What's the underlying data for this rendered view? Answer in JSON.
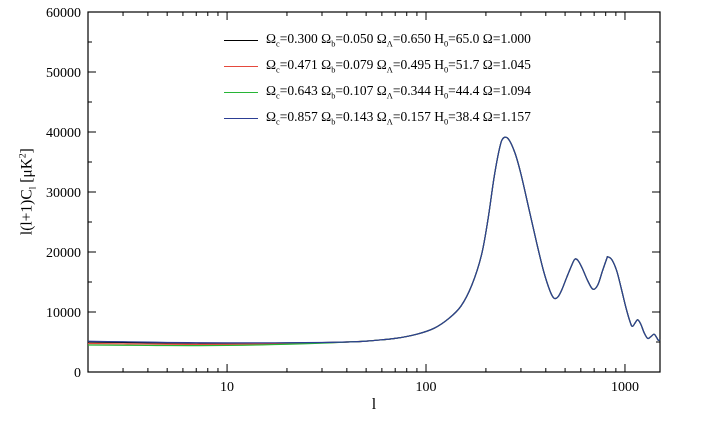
{
  "chart_data": {
    "type": "line",
    "title": "",
    "xlabel": "l",
    "ylabel": "l(l+1)Cl [μK2]",
    "x_scale": "log",
    "xlim": [
      2,
      1500
    ],
    "ylim": [
      0,
      60000
    ],
    "x_major_ticks": [
      10,
      100,
      1000
    ],
    "y_major_ticks": [
      0,
      10000,
      20000,
      30000,
      40000,
      50000,
      60000
    ],
    "y_minor_step": 5000,
    "grid": false,
    "legend_position": "top-inside",
    "x": [
      2,
      3,
      4,
      5,
      7,
      10,
      15,
      20,
      30,
      40,
      50,
      70,
      90,
      110,
      130,
      150,
      170,
      190,
      205,
      220,
      235,
      245,
      260,
      280,
      300,
      330,
      360,
      390,
      420,
      440,
      460,
      480,
      510,
      540,
      560,
      580,
      610,
      650,
      690,
      730,
      770,
      810,
      820,
      860,
      910,
      960,
      1010,
      1060,
      1090,
      1130,
      1160,
      1200,
      1250,
      1300,
      1350,
      1400,
      1440,
      1470,
      1500
    ],
    "series": [
      {
        "name": "Ωc=0.300 Ωb=0.050 ΩΛ=0.650 H0=65.0 Ω=1.000",
        "color": "#000000",
        "values": [
          5000,
          4930,
          4880,
          4840,
          4800,
          4780,
          4800,
          4830,
          4900,
          5000,
          5150,
          5600,
          6300,
          7300,
          8900,
          11000,
          14500,
          19500,
          25500,
          32500,
          37500,
          39000,
          38800,
          36500,
          33000,
          27000,
          21500,
          16800,
          13500,
          12300,
          12500,
          13600,
          15800,
          17800,
          18800,
          18600,
          17300,
          15200,
          13800,
          14500,
          16800,
          18900,
          19200,
          18700,
          16800,
          13800,
          10800,
          8400,
          7600,
          8300,
          8700,
          8000,
          6500,
          5600,
          5900,
          6300,
          5800,
          5300,
          5400
        ]
      },
      {
        "name": "Ωc=0.471 Ωb=0.079 ΩΛ=0.495 H0=51.7 Ω=1.045",
        "color": "#e5493d",
        "values": [
          4750,
          4700,
          4660,
          4630,
          4600,
          4610,
          4660,
          4730,
          4850,
          5000,
          5150,
          5600,
          6300,
          7300,
          8900,
          11000,
          14500,
          19500,
          25500,
          32500,
          37500,
          39000,
          38800,
          36500,
          33000,
          27000,
          21500,
          16800,
          13500,
          12300,
          12500,
          13600,
          15800,
          17800,
          18800,
          18600,
          17300,
          15200,
          13800,
          14500,
          16800,
          18900,
          19200,
          18700,
          16800,
          13800,
          10800,
          8400,
          7600,
          8300,
          8700,
          8000,
          6500,
          5600,
          5900,
          6300,
          5800,
          5300,
          5400
        ]
      },
      {
        "name": "Ωc=0.643 Ωb=0.107 ΩΛ=0.344 H0=44.4 Ω=1.094",
        "color": "#27b536",
        "values": [
          4500,
          4460,
          4430,
          4410,
          4400,
          4430,
          4520,
          4630,
          4800,
          5000,
          5150,
          5600,
          6300,
          7300,
          8900,
          11000,
          14500,
          19500,
          25500,
          32500,
          37500,
          39000,
          38800,
          36500,
          33000,
          27000,
          21500,
          16800,
          13500,
          12300,
          12500,
          13600,
          15800,
          17800,
          18800,
          18600,
          17300,
          15200,
          13800,
          14500,
          16800,
          18900,
          19200,
          18700,
          16800,
          13800,
          10800,
          8400,
          7600,
          8300,
          8700,
          8000,
          6500,
          5600,
          5900,
          6300,
          5800,
          5300,
          5400
        ]
      },
      {
        "name": "Ωc=0.857 Ωb=0.143 ΩΛ=0.157 H0=38.4 Ω=1.157",
        "color": "#2c3e94",
        "values": [
          5120,
          5040,
          4980,
          4930,
          4880,
          4850,
          4860,
          4870,
          4920,
          5000,
          5150,
          5600,
          6300,
          7300,
          8900,
          11000,
          14500,
          19500,
          25500,
          32500,
          37500,
          39000,
          38800,
          36500,
          33000,
          27000,
          21500,
          16800,
          13500,
          12300,
          12500,
          13600,
          15800,
          17800,
          18800,
          18600,
          17300,
          15200,
          13800,
          14500,
          16800,
          18900,
          19200,
          18700,
          16800,
          13800,
          10800,
          8400,
          7600,
          8300,
          8700,
          8000,
          6500,
          5600,
          5900,
          6300,
          5800,
          5300,
          5400
        ]
      }
    ]
  },
  "axes": {
    "xlabel": "l",
    "ylabel_parts": {
      "pre": "l(l+1)C",
      "sub": "l",
      "mid": " [μK",
      "sup": "2",
      "post": "]"
    },
    "x_tick_labels": [
      "10",
      "100",
      "1000"
    ],
    "y_tick_labels": [
      "0",
      "10000",
      "20000",
      "30000",
      "40000",
      "50000",
      "60000"
    ]
  },
  "legend": {
    "labels": {
      "omega": "Ω",
      "sub_c": "c",
      "sub_b": "b",
      "sub_lambda": "Λ",
      "h": "H",
      "sub_0": "0",
      "eq": "="
    },
    "entries": [
      {
        "color": "#000000",
        "omega_c": "0.300",
        "omega_b": "0.050",
        "omega_lambda": "0.650",
        "h0": "65.0",
        "omega_total": "1.000"
      },
      {
        "color": "#e5493d",
        "omega_c": "0.471",
        "omega_b": "0.079",
        "omega_lambda": "0.495",
        "h0": "51.7",
        "omega_total": "1.045"
      },
      {
        "color": "#27b536",
        "omega_c": "0.643",
        "omega_b": "0.107",
        "omega_lambda": "0.344",
        "h0": "44.4",
        "omega_total": "1.094"
      },
      {
        "color": "#2c3e94",
        "omega_c": "0.857",
        "omega_b": "0.143",
        "omega_lambda": "0.157",
        "h0": "38.4",
        "omega_total": "1.157"
      }
    ]
  }
}
